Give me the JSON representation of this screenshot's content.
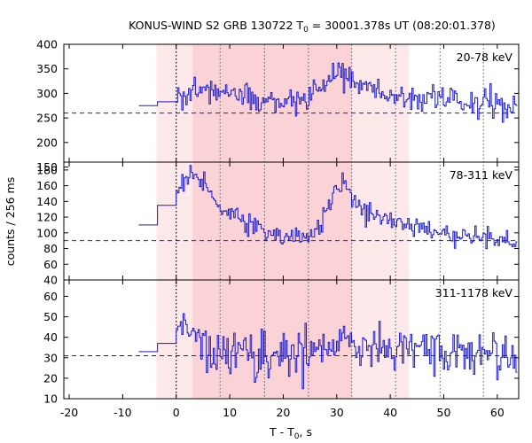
{
  "chart_data": {
    "type": "line",
    "title": {
      "main": "KONUS-WIND S2 GRB 130722 T",
      "sub": "0",
      "rest": " = 30001.378s UT (08:20:01.378)"
    },
    "xlabel": {
      "main": "T - T",
      "sub": "0",
      "rest": ", s"
    },
    "ylabel": "counts / 256 ms",
    "xlim": [
      -21,
      64
    ],
    "xticks": [
      "-20",
      "-10",
      "0",
      "10",
      "20",
      "30",
      "40",
      "50",
      "60"
    ],
    "x_tick_values": [
      -20,
      -10,
      0,
      10,
      20,
      30,
      40,
      50,
      60
    ],
    "highlight_regions": [
      {
        "x0": -3.7,
        "x1": 43.5,
        "color": "#fde8ea"
      },
      {
        "x0": 3.1,
        "x1": 32.8,
        "color": "#fbd3d6"
      }
    ],
    "vertical_markers": {
      "black": [
        0
      ],
      "gray": [
        8.2,
        16.5,
        24.7,
        32.8,
        41.0,
        49.3,
        57.4
      ]
    },
    "trigger_step": 0.256,
    "panels": [
      {
        "label": "20-78 keV",
        "ylim": [
          160,
          400
        ],
        "yticks": [
          "150",
          "200",
          "250",
          "300",
          "350",
          "400"
        ],
        "ytick_values": [
          150,
          200,
          250,
          300,
          350,
          400
        ],
        "background": 260,
        "pre_trigger": [
          {
            "x0": -7,
            "x1": -3.5,
            "y": 275
          },
          {
            "x0": -3.5,
            "x1": 0,
            "y": 283
          }
        ],
        "profile_points": [
          [
            0,
            300
          ],
          [
            5,
            308
          ],
          [
            10,
            300
          ],
          [
            15,
            292
          ],
          [
            20,
            282
          ],
          [
            24,
            288
          ],
          [
            27,
            312
          ],
          [
            30,
            340
          ],
          [
            33,
            325
          ],
          [
            38,
            300
          ],
          [
            45,
            292
          ],
          [
            50,
            290
          ],
          [
            55,
            283
          ],
          [
            63.5,
            270
          ]
        ],
        "noise": 13
      },
      {
        "label": "78-311 keV",
        "ylim": [
          40,
          190
        ],
        "yticks": [
          "40",
          "60",
          "80",
          "100",
          "120",
          "140",
          "160",
          "180"
        ],
        "ytick_values": [
          40,
          60,
          80,
          100,
          120,
          140,
          160,
          180
        ],
        "background": 90,
        "pre_trigger": [
          {
            "x0": -7,
            "x1": -3.5,
            "y": 110
          },
          {
            "x0": -3.5,
            "x1": 0,
            "y": 135
          }
        ],
        "profile_points": [
          [
            0,
            150
          ],
          [
            1.5,
            168
          ],
          [
            3,
            175
          ],
          [
            5,
            165
          ],
          [
            7,
            145
          ],
          [
            9,
            130
          ],
          [
            12,
            118
          ],
          [
            16,
            105
          ],
          [
            20,
            95
          ],
          [
            24,
            93
          ],
          [
            27,
            110
          ],
          [
            29,
            140
          ],
          [
            31,
            165
          ],
          [
            33,
            145
          ],
          [
            36,
            125
          ],
          [
            40,
            115
          ],
          [
            45,
            108
          ],
          [
            50,
            100
          ],
          [
            55,
            96
          ],
          [
            63.5,
            88
          ]
        ],
        "noise": 6.5
      },
      {
        "label": "311-1178 keV",
        "ylim": [
          10,
          68
        ],
        "yticks": [
          "10",
          "20",
          "30",
          "40",
          "50",
          "60"
        ],
        "ytick_values": [
          10,
          20,
          30,
          40,
          50,
          60
        ],
        "background": 31,
        "pre_trigger": [
          {
            "x0": -7,
            "x1": -3.5,
            "y": 33
          },
          {
            "x0": -3.5,
            "x1": 0,
            "y": 37
          }
        ],
        "profile_points": [
          [
            0,
            40
          ],
          [
            1,
            48
          ],
          [
            3,
            42
          ],
          [
            5,
            37
          ],
          [
            8,
            33
          ],
          [
            15,
            32
          ],
          [
            24,
            32
          ],
          [
            28,
            36
          ],
          [
            31,
            40
          ],
          [
            34,
            35
          ],
          [
            40,
            33
          ],
          [
            63.5,
            31
          ]
        ],
        "noise": 5.5
      }
    ],
    "colors": {
      "data": "#1a1acc",
      "background_line": "#1a1acc",
      "marker_black": "#000000",
      "marker_gray": "#555555"
    }
  }
}
